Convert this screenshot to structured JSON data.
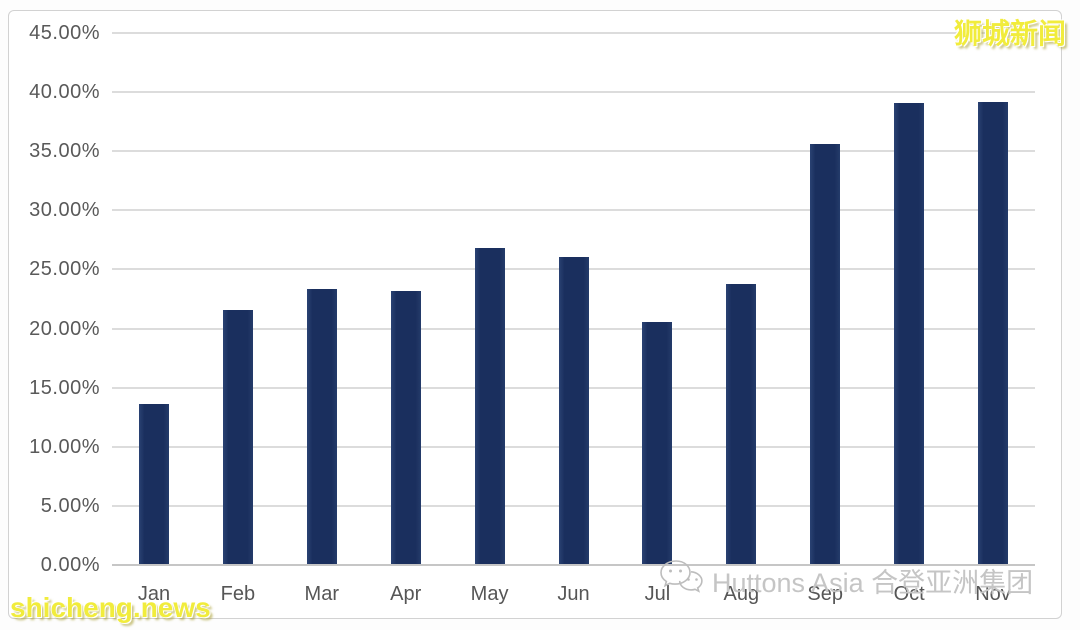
{
  "watermarks": {
    "top_right": "狮城新闻",
    "bottom_left": "shicheng.news",
    "bottom_center": "Huttons Asia 合登亚洲集团"
  },
  "colors": {
    "bar": "#1a2f5e",
    "gridline": "#dcdcdc",
    "axis_text": "#595959",
    "frame_border": "#d2d2d2",
    "watermark_yellow": "#f1ec3c",
    "watermark_gray": "#c5c5c5"
  },
  "chart_data": {
    "type": "bar",
    "categories": [
      "Jan",
      "Feb",
      "Mar",
      "Apr",
      "May",
      "Jun",
      "Jul",
      "Aug",
      "Sep",
      "Oct",
      "Nov"
    ],
    "values": [
      13.5,
      21.5,
      23.3,
      23.1,
      26.7,
      26.0,
      20.5,
      23.7,
      35.5,
      39.0,
      39.1
    ],
    "title": "",
    "xlabel": "",
    "ylabel": "",
    "ylim": [
      0,
      45
    ],
    "ytick_step": 5,
    "ytick_labels": [
      "0.00%",
      "5.00%",
      "10.00%",
      "15.00%",
      "20.00%",
      "25.00%",
      "30.00%",
      "35.00%",
      "40.00%",
      "45.00%"
    ],
    "grid": true,
    "legend": false
  }
}
